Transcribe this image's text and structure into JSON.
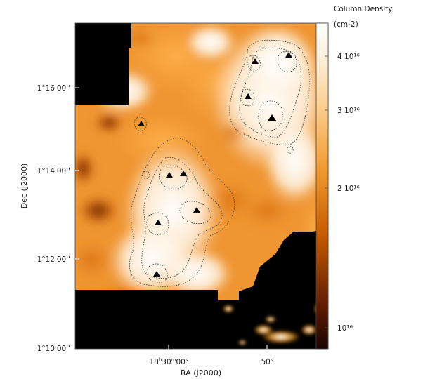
{
  "chart_data": {
    "type": "heatmap",
    "title": "",
    "xlabel": "RA (J2000)",
    "ylabel": "Dec (J2000)",
    "x_ticks": [
      {
        "label": "18h30m00s"
      },
      {
        "label": "50s"
      }
    ],
    "y_ticks": [
      {
        "label": "1°16'00''",
        "value_arcmin": 16
      },
      {
        "label": "1°14'00''",
        "value_arcmin": 14
      },
      {
        "label": "1°12'00''",
        "value_arcmin": 12
      },
      {
        "label": "1°10'00''",
        "value_arcmin": 10
      }
    ],
    "colorbar": {
      "title_line1": "Column Density",
      "title_line2": "(cm-2)",
      "ticks": [
        {
          "label": "4 10¹⁶",
          "value": 4e+16
        },
        {
          "label": "3 10¹⁶",
          "value": 3e+16
        },
        {
          "label": "2 10¹⁶",
          "value": 2e+16
        },
        {
          "label": "10¹⁶",
          "value": 1e+16
        }
      ],
      "scale": "log",
      "colormap": "heat (black-orange-white)"
    },
    "markers": {
      "symbol": "filled-triangle",
      "color": "#000000"
    },
    "contours": {
      "style": "dotted",
      "color": "#333333"
    },
    "blank_region_color": "#000000"
  }
}
